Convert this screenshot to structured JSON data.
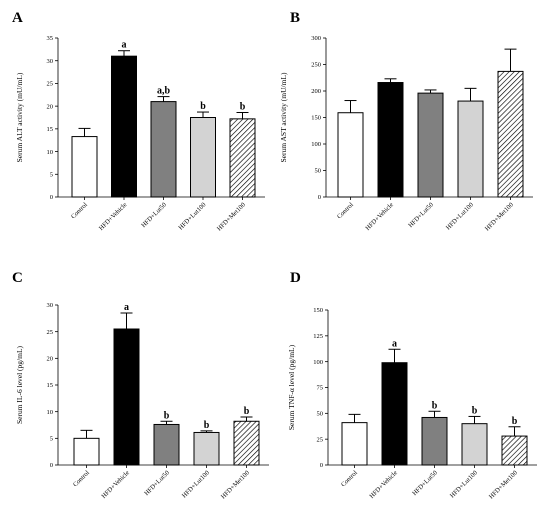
{
  "chart_data": [
    {
      "panel": "A",
      "type": "bar",
      "ylabel": "Serum ALT activity (mU/mL)",
      "ylim": [
        0,
        35
      ],
      "yticks": [
        0,
        5,
        10,
        15,
        20,
        25,
        30,
        35
      ],
      "categories": [
        "Control",
        "HFD+Vehicle",
        "HFD+Lut50",
        "HFD+Lut100",
        "HFD+Met100"
      ],
      "values": [
        13.3,
        31.0,
        21.0,
        17.5,
        17.2
      ],
      "errors": [
        1.8,
        1.2,
        1.1,
        1.2,
        1.4
      ],
      "labels": [
        "",
        "a",
        "a,b",
        "b",
        "b"
      ]
    },
    {
      "panel": "B",
      "type": "bar",
      "ylabel": "Serum AST activity (mU/mL)",
      "ylim": [
        0,
        300
      ],
      "yticks": [
        0,
        50,
        100,
        150,
        200,
        250,
        300
      ],
      "categories": [
        "Control",
        "HFD+Vehicle",
        "HFD+Lut50",
        "HFD+Lut100",
        "HFD+Met100"
      ],
      "values": [
        159,
        216,
        196,
        181,
        237
      ],
      "errors": [
        23,
        7,
        6,
        24,
        42
      ],
      "labels": [
        "",
        "",
        "",
        "",
        ""
      ]
    },
    {
      "panel": "C",
      "type": "bar",
      "ylabel": "Serum IL-6 level (pg/mL)",
      "ylim": [
        0,
        30
      ],
      "yticks": [
        0,
        5,
        10,
        15,
        20,
        25,
        30
      ],
      "categories": [
        "Control",
        "HFD+Vehicle",
        "HFD+Lut50",
        "HFD+Lut100",
        "HFD+Met100"
      ],
      "values": [
        5.0,
        25.5,
        7.6,
        6.1,
        8.2
      ],
      "errors": [
        1.5,
        3.0,
        0.6,
        0.3,
        0.8
      ],
      "labels": [
        "",
        "a",
        "b",
        "b",
        "b"
      ]
    },
    {
      "panel": "D",
      "type": "bar",
      "ylabel": "Serum TNF-α level (pg/mL)",
      "ylim": [
        0,
        150
      ],
      "yticks": [
        0,
        25,
        50,
        75,
        100,
        125,
        150
      ],
      "categories": [
        "Control",
        "HFD+Vehicle",
        "HFD+Lut50",
        "HFD+Lut100",
        "HFD+Met100"
      ],
      "values": [
        41,
        99,
        46,
        40,
        28
      ],
      "errors": [
        8,
        13,
        6,
        7,
        9
      ],
      "labels": [
        "",
        "a",
        "b",
        "b",
        "b"
      ]
    }
  ],
  "bar_fills": [
    "#ffffff",
    "#000000",
    "#808080",
    "#d3d3d3",
    "hatch"
  ]
}
